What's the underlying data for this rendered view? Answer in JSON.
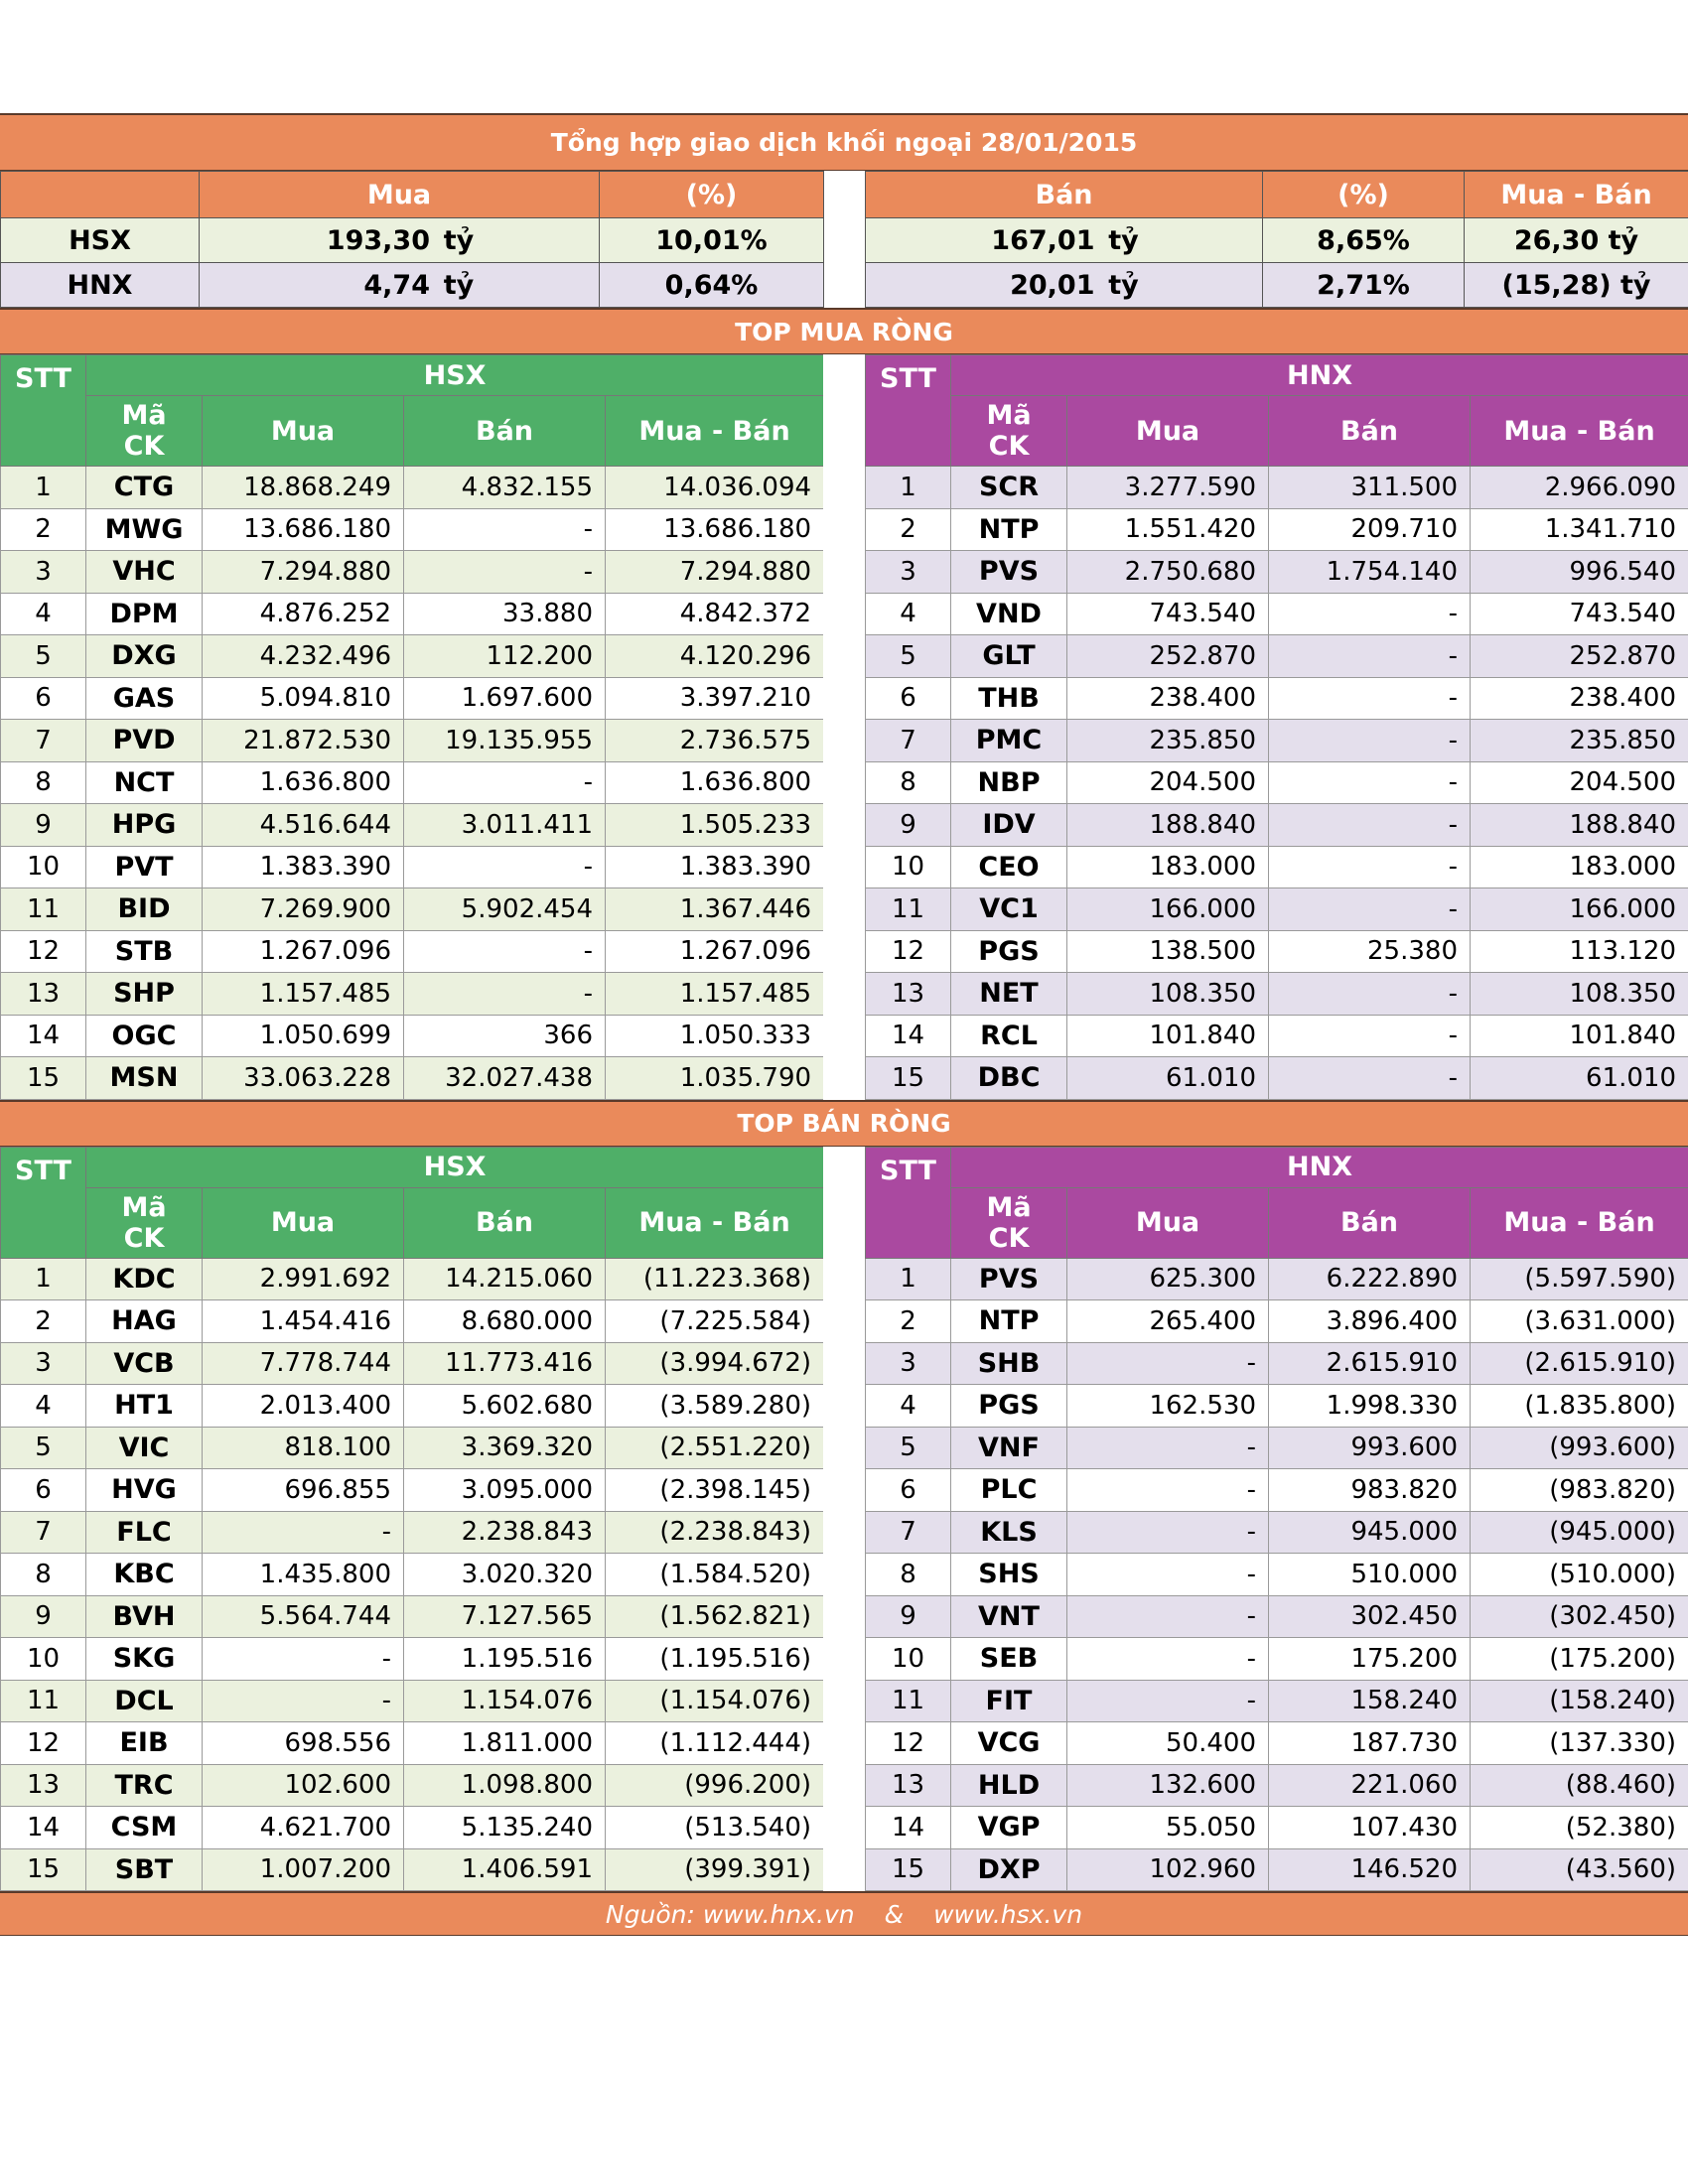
{
  "title": "Tổng hợp giao dịch khối ngoại 28/01/2015",
  "summary": {
    "headers": {
      "mua": "Mua",
      "mua_pct": "(%)",
      "ban": "Bán",
      "ban_pct": "(%)",
      "net": "Mua - Bán"
    },
    "rows": [
      {
        "exchange": "HSX",
        "mua": "193,30",
        "mua_unit": "tỷ",
        "mua_pct": "10,01%",
        "ban": "167,01",
        "ban_unit": "tỷ",
        "ban_pct": "8,65%",
        "net": "26,30 tỷ"
      },
      {
        "exchange": "HNX",
        "mua": "4,74",
        "mua_unit": "tỷ",
        "mua_pct": "0,64%",
        "ban": "20,01",
        "ban_unit": "tỷ",
        "ban_pct": "2,71%",
        "net": "(15,28) tỷ"
      }
    ]
  },
  "columns": {
    "stt": "STT",
    "ma": "Mã",
    "ck": "CK",
    "mua": "Mua",
    "ban": "Bán",
    "net": "Mua - Bán"
  },
  "top_buy": {
    "title": "TOP MUA RÒNG",
    "hsx": {
      "title": "HSX",
      "rows": [
        [
          "1",
          "CTG",
          "18.868.249",
          "4.832.155",
          "14.036.094"
        ],
        [
          "2",
          "MWG",
          "13.686.180",
          "-",
          "13.686.180"
        ],
        [
          "3",
          "VHC",
          "7.294.880",
          "-",
          "7.294.880"
        ],
        [
          "4",
          "DPM",
          "4.876.252",
          "33.880",
          "4.842.372"
        ],
        [
          "5",
          "DXG",
          "4.232.496",
          "112.200",
          "4.120.296"
        ],
        [
          "6",
          "GAS",
          "5.094.810",
          "1.697.600",
          "3.397.210"
        ],
        [
          "7",
          "PVD",
          "21.872.530",
          "19.135.955",
          "2.736.575"
        ],
        [
          "8",
          "NCT",
          "1.636.800",
          "-",
          "1.636.800"
        ],
        [
          "9",
          "HPG",
          "4.516.644",
          "3.011.411",
          "1.505.233"
        ],
        [
          "10",
          "PVT",
          "1.383.390",
          "-",
          "1.383.390"
        ],
        [
          "11",
          "BID",
          "7.269.900",
          "5.902.454",
          "1.367.446"
        ],
        [
          "12",
          "STB",
          "1.267.096",
          "-",
          "1.267.096"
        ],
        [
          "13",
          "SHP",
          "1.157.485",
          "-",
          "1.157.485"
        ],
        [
          "14",
          "OGC",
          "1.050.699",
          "366",
          "1.050.333"
        ],
        [
          "15",
          "MSN",
          "33.063.228",
          "32.027.438",
          "1.035.790"
        ]
      ]
    },
    "hnx": {
      "title": "HNX",
      "rows": [
        [
          "1",
          "SCR",
          "3.277.590",
          "311.500",
          "2.966.090"
        ],
        [
          "2",
          "NTP",
          "1.551.420",
          "209.710",
          "1.341.710"
        ],
        [
          "3",
          "PVS",
          "2.750.680",
          "1.754.140",
          "996.540"
        ],
        [
          "4",
          "VND",
          "743.540",
          "-",
          "743.540"
        ],
        [
          "5",
          "GLT",
          "252.870",
          "-",
          "252.870"
        ],
        [
          "6",
          "THB",
          "238.400",
          "-",
          "238.400"
        ],
        [
          "7",
          "PMC",
          "235.850",
          "-",
          "235.850"
        ],
        [
          "8",
          "NBP",
          "204.500",
          "-",
          "204.500"
        ],
        [
          "9",
          "IDV",
          "188.840",
          "-",
          "188.840"
        ],
        [
          "10",
          "CEO",
          "183.000",
          "-",
          "183.000"
        ],
        [
          "11",
          "VC1",
          "166.000",
          "-",
          "166.000"
        ],
        [
          "12",
          "PGS",
          "138.500",
          "25.380",
          "113.120"
        ],
        [
          "13",
          "NET",
          "108.350",
          "-",
          "108.350"
        ],
        [
          "14",
          "RCL",
          "101.840",
          "-",
          "101.840"
        ],
        [
          "15",
          "DBC",
          "61.010",
          "-",
          "61.010"
        ]
      ]
    }
  },
  "top_sell": {
    "title": "TOP BÁN RÒNG",
    "hsx": {
      "title": "HSX",
      "rows": [
        [
          "1",
          "KDC",
          "2.991.692",
          "14.215.060",
          "(11.223.368)"
        ],
        [
          "2",
          "HAG",
          "1.454.416",
          "8.680.000",
          "(7.225.584)"
        ],
        [
          "3",
          "VCB",
          "7.778.744",
          "11.773.416",
          "(3.994.672)"
        ],
        [
          "4",
          "HT1",
          "2.013.400",
          "5.602.680",
          "(3.589.280)"
        ],
        [
          "5",
          "VIC",
          "818.100",
          "3.369.320",
          "(2.551.220)"
        ],
        [
          "6",
          "HVG",
          "696.855",
          "3.095.000",
          "(2.398.145)"
        ],
        [
          "7",
          "FLC",
          "-",
          "2.238.843",
          "(2.238.843)"
        ],
        [
          "8",
          "KBC",
          "1.435.800",
          "3.020.320",
          "(1.584.520)"
        ],
        [
          "9",
          "BVH",
          "5.564.744",
          "7.127.565",
          "(1.562.821)"
        ],
        [
          "10",
          "SKG",
          "-",
          "1.195.516",
          "(1.195.516)"
        ],
        [
          "11",
          "DCL",
          "-",
          "1.154.076",
          "(1.154.076)"
        ],
        [
          "12",
          "EIB",
          "698.556",
          "1.811.000",
          "(1.112.444)"
        ],
        [
          "13",
          "TRC",
          "102.600",
          "1.098.800",
          "(996.200)"
        ],
        [
          "14",
          "CSM",
          "4.621.700",
          "5.135.240",
          "(513.540)"
        ],
        [
          "15",
          "SBT",
          "1.007.200",
          "1.406.591",
          "(399.391)"
        ]
      ]
    },
    "hnx": {
      "title": "HNX",
      "rows": [
        [
          "1",
          "PVS",
          "625.300",
          "6.222.890",
          "(5.597.590)"
        ],
        [
          "2",
          "NTP",
          "265.400",
          "3.896.400",
          "(3.631.000)"
        ],
        [
          "3",
          "SHB",
          "-",
          "2.615.910",
          "(2.615.910)"
        ],
        [
          "4",
          "PGS",
          "162.530",
          "1.998.330",
          "(1.835.800)"
        ],
        [
          "5",
          "VNF",
          "-",
          "993.600",
          "(993.600)"
        ],
        [
          "6",
          "PLC",
          "-",
          "983.820",
          "(983.820)"
        ],
        [
          "7",
          "KLS",
          "-",
          "945.000",
          "(945.000)"
        ],
        [
          "8",
          "SHS",
          "-",
          "510.000",
          "(510.000)"
        ],
        [
          "9",
          "VNT",
          "-",
          "302.450",
          "(302.450)"
        ],
        [
          "10",
          "SEB",
          "-",
          "175.200",
          "(175.200)"
        ],
        [
          "11",
          "FIT",
          "-",
          "158.240",
          "(158.240)"
        ],
        [
          "12",
          "VCG",
          "50.400",
          "187.730",
          "(137.330)"
        ],
        [
          "13",
          "HLD",
          "132.600",
          "221.060",
          "(88.460)"
        ],
        [
          "14",
          "VGP",
          "55.050",
          "107.430",
          "(52.380)"
        ],
        [
          "15",
          "DXP",
          "102.960",
          "146.520",
          "(43.560)"
        ]
      ]
    }
  },
  "source": {
    "hnx": "Nguồn: www.hnx.vn",
    "sep": "&",
    "hsx": "www.hsx.vn"
  }
}
